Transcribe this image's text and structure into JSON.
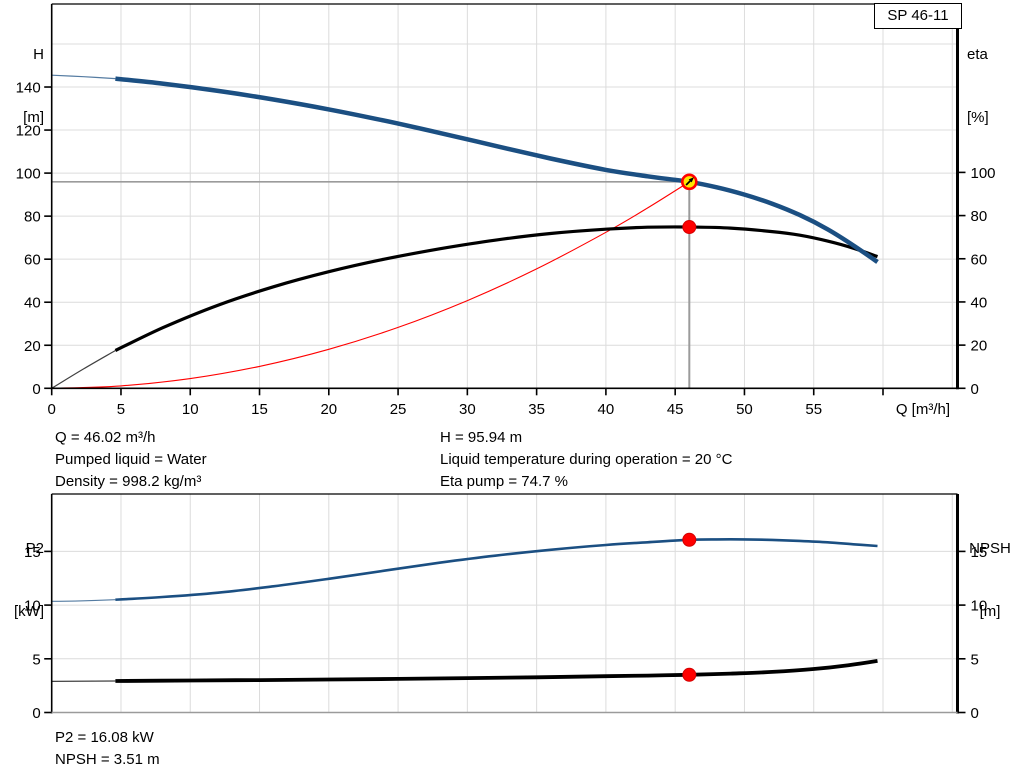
{
  "title_box": {
    "label": "SP 46-11"
  },
  "annotations": {
    "q": "Q = 46.02 m³/h",
    "h": "H = 95.94 m",
    "pumped_liquid": "Pumped liquid = Water",
    "liquid_temp": "Liquid temperature during operation = 20 °C",
    "density": "Density = 998.2 kg/m³",
    "eta_pump": "Eta pump = 74.7 %",
    "p2": "P2 = 16.08 kW",
    "npsh": "NPSH = 3.51 m"
  },
  "colors": {
    "head_curve": "#1b4f82",
    "eta_curve": "#000000",
    "system_curve": "#ff0000",
    "p2_curve": "#1b4f82",
    "npsh_curve": "#000000",
    "grid": "#dcdcdc",
    "axis": "#000000",
    "bottom_axis_gray": "#9b9b9b",
    "crosshair": "#9b9b9b",
    "marker_fill_duty": "#ffe800",
    "marker_ring": "#ff0000",
    "marker_red": "#ff0000"
  },
  "chart_data": [
    {
      "type": "line",
      "name": "hq-eta-chart",
      "title": "SP 46-11",
      "x_axis": {
        "label": "Q [m³/h]",
        "min": 0,
        "max": 65.4,
        "tick_marks": [
          0,
          5,
          10,
          15,
          20,
          25,
          30,
          35,
          40,
          45,
          50,
          55,
          60
        ],
        "tick_labels": [
          0,
          5,
          10,
          15,
          20,
          25,
          30,
          35,
          40,
          45,
          50,
          55
        ]
      },
      "left_axis": {
        "name": "H",
        "unit": "[m]",
        "min": 0,
        "ticks": [
          0,
          20,
          40,
          60,
          80,
          100,
          120,
          140
        ]
      },
      "right_axis": {
        "name": "eta",
        "unit": "[%]",
        "min": 0,
        "ticks": [
          0,
          20,
          40,
          60,
          80,
          100
        ]
      },
      "series": [
        {
          "name": "head",
          "axis": "left",
          "color": "#1b4f82",
          "width": 4.5,
          "thin_until": 4.6,
          "points": [
            [
              0,
              145.5
            ],
            [
              2.3,
              144.8
            ],
            [
              4.6,
              143.9
            ],
            [
              8,
              141.6
            ],
            [
              12,
              138.2
            ],
            [
              16,
              134.2
            ],
            [
              20,
              129.6
            ],
            [
              24,
              124.4
            ],
            [
              28,
              118.7
            ],
            [
              32,
              112.7
            ],
            [
              36,
              106.8
            ],
            [
              40,
              101.5
            ],
            [
              43,
              98.5
            ],
            [
              46.02,
              95.94
            ],
            [
              48,
              93.4
            ],
            [
              50,
              90
            ],
            [
              52,
              85.8
            ],
            [
              54,
              80.5
            ],
            [
              56,
              73.9
            ],
            [
              58,
              65.8
            ],
            [
              59.6,
              58.7
            ]
          ]
        },
        {
          "name": "efficiency",
          "axis": "right",
          "color": "#000000",
          "width": 3.2,
          "thin_until": 4.6,
          "points": [
            [
              0,
              0
            ],
            [
              2.3,
              9
            ],
            [
              4.6,
              17.5
            ],
            [
              8,
              28
            ],
            [
              12,
              38.5
            ],
            [
              16,
              47
            ],
            [
              20,
              54
            ],
            [
              24,
              59.8
            ],
            [
              28,
              64.6
            ],
            [
              32,
              68.6
            ],
            [
              36,
              71.7
            ],
            [
              40,
              73.7
            ],
            [
              43,
              74.6
            ],
            [
              46.02,
              74.7
            ],
            [
              49,
              74.2
            ],
            [
              52,
              72.6
            ],
            [
              54,
              70.9
            ],
            [
              56,
              68.2
            ],
            [
              58,
              64.6
            ],
            [
              59.6,
              61
            ]
          ]
        },
        {
          "name": "system-curve",
          "axis": "left",
          "color": "#ff0000",
          "width": 1.1,
          "points": [
            [
              0,
              0
            ],
            [
              5,
              1.13
            ],
            [
              10,
              4.53
            ],
            [
              15,
              10.19
            ],
            [
              20,
              18.12
            ],
            [
              25,
              28.31
            ],
            [
              30,
              40.77
            ],
            [
              35,
              55.49
            ],
            [
              40,
              72.48
            ],
            [
              43,
              83.76
            ],
            [
              46.02,
              95.94
            ]
          ]
        }
      ],
      "markers": [
        {
          "name": "duty-point",
          "q": 46.02,
          "value": 95.94,
          "axis": "left",
          "style": "duty"
        },
        {
          "name": "eta-point",
          "q": 46.02,
          "value": 74.7,
          "axis": "right",
          "style": "red"
        }
      ],
      "crosshair": {
        "q": 46.02,
        "value": 95.94
      }
    },
    {
      "type": "line",
      "name": "p2-npsh-chart",
      "x_axis": {
        "min": 0,
        "max": 65.4,
        "tick_marks": [],
        "tick_labels": []
      },
      "left_axis": {
        "name": "P2",
        "unit": "[kW]",
        "min": 0,
        "ticks": [
          0,
          5,
          10,
          15
        ]
      },
      "right_axis": {
        "name": "NPSH",
        "unit": "[m]",
        "min": 0,
        "ticks": [
          0,
          5,
          10,
          15
        ]
      },
      "series": [
        {
          "name": "p2",
          "axis": "left",
          "color": "#1b4f82",
          "width": 2.6,
          "thin_until": 4.6,
          "points": [
            [
              0,
              10.35
            ],
            [
              2.3,
              10.4
            ],
            [
              4.6,
              10.5
            ],
            [
              8,
              10.75
            ],
            [
              12,
              11.15
            ],
            [
              16,
              11.75
            ],
            [
              20,
              12.45
            ],
            [
              24,
              13.2
            ],
            [
              28,
              13.95
            ],
            [
              32,
              14.6
            ],
            [
              36,
              15.15
            ],
            [
              40,
              15.6
            ],
            [
              43,
              15.85
            ],
            [
              46.02,
              16.08
            ],
            [
              48,
              16.12
            ],
            [
              50,
              16.12
            ],
            [
              52,
              16.07
            ],
            [
              54,
              15.98
            ],
            [
              56,
              15.85
            ],
            [
              58,
              15.65
            ],
            [
              59.6,
              15.5
            ]
          ]
        },
        {
          "name": "npsh",
          "axis": "right",
          "color": "#000000",
          "width": 3.8,
          "thin_until": 4.6,
          "points": [
            [
              0,
              2.9
            ],
            [
              4.6,
              2.93
            ],
            [
              10,
              2.98
            ],
            [
              15,
              3.02
            ],
            [
              20,
              3.07
            ],
            [
              25,
              3.13
            ],
            [
              30,
              3.2
            ],
            [
              35,
              3.28
            ],
            [
              40,
              3.38
            ],
            [
              43,
              3.44
            ],
            [
              46.02,
              3.51
            ],
            [
              49,
              3.62
            ],
            [
              52,
              3.78
            ],
            [
              55,
              4.05
            ],
            [
              57.5,
              4.4
            ],
            [
              59.6,
              4.8
            ]
          ]
        }
      ],
      "markers": [
        {
          "name": "p2-point",
          "q": 46.02,
          "value": 16.08,
          "axis": "left",
          "style": "red"
        },
        {
          "name": "npsh-point",
          "q": 46.02,
          "value": 3.51,
          "axis": "right",
          "style": "red"
        }
      ]
    }
  ]
}
